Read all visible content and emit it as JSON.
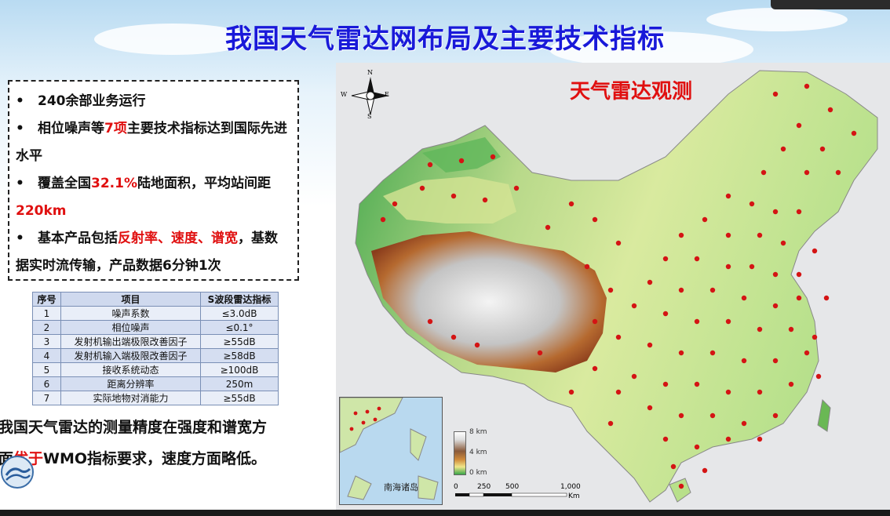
{
  "title": "我国天气雷达网布局及主要技术指标",
  "bullets": [
    [
      {
        "t": "240余部业务运行",
        "red": false
      }
    ],
    [
      {
        "t": "相位噪声等",
        "red": false
      },
      {
        "t": "7项",
        "red": true
      },
      {
        "t": "主要技术指标达到国际先进水平",
        "red": false
      }
    ],
    [
      {
        "t": "覆盖全国",
        "red": false
      },
      {
        "t": "32.1%",
        "red": true
      },
      {
        "t": "陆地面积，平均站间距",
        "red": false
      },
      {
        "t": "220km",
        "red": true
      }
    ],
    [
      {
        "t": "基本产品包括",
        "red": false
      },
      {
        "t": "反射率、速度、谱宽",
        "red": true
      },
      {
        "t": "，基数据实时流传输，产品数据6分钟1次",
        "red": false
      }
    ]
  ],
  "bullet_marker": "•",
  "table": {
    "headers": [
      "序号",
      "项目",
      "S波段雷达指标"
    ],
    "rows": [
      [
        "1",
        "噪声系数",
        "≤3.0dB"
      ],
      [
        "2",
        "相位噪声",
        "≤0.1°"
      ],
      [
        "3",
        "发射机输出端极限改善因子",
        "≥55dB"
      ],
      [
        "4",
        "发射机输入端极限改善因子",
        "≥58dB"
      ],
      [
        "5",
        "接收系统动态",
        "≥100dB"
      ],
      [
        "6",
        "距离分辨率",
        "250m"
      ],
      [
        "7",
        "实际地物对消能力",
        "≥55dB"
      ]
    ]
  },
  "conclusion": {
    "line1": "我国天气雷达的测量精度在强度和谱宽方",
    "line2_prefix": "面",
    "line2_red": "优于",
    "line2_rest": "WMO指标要求，速度方面略低。"
  },
  "map": {
    "title": "天气雷达观测",
    "compass": {
      "n": "N",
      "s": "S",
      "e": "E",
      "w": "W"
    },
    "inset_label": "南海诸岛",
    "legend": [
      "8 km",
      "4 km",
      "0 km"
    ],
    "scale": [
      "0",
      "250",
      "500",
      "1,000",
      "Km"
    ],
    "radar_color": "#d41414"
  },
  "colors": {
    "title": "#1919d9",
    "accent_red": "#e01010"
  }
}
